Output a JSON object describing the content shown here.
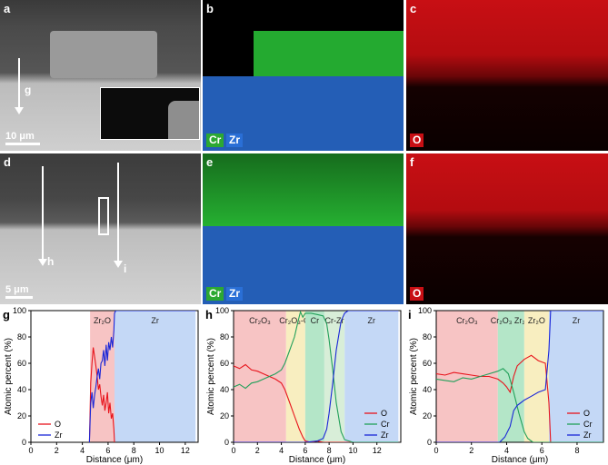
{
  "panels": {
    "a": {
      "label": "a",
      "scale": "10 μm",
      "arrow": "g"
    },
    "b": {
      "label": "b",
      "tags": [
        "Cr",
        "Zr"
      ]
    },
    "c": {
      "label": "c",
      "tags": [
        "O"
      ]
    },
    "d": {
      "label": "d",
      "scale": "5 μm",
      "arrows": [
        "h",
        "i"
      ]
    },
    "e": {
      "label": "e",
      "tags": [
        "Cr",
        "Zr"
      ]
    },
    "f": {
      "label": "f",
      "tags": [
        "O"
      ]
    }
  },
  "colors": {
    "O": "#e8141c",
    "Cr": "#21a05a",
    "Zr": "#1a26d8",
    "map_cr": "#2ccf3a",
    "map_zr": "#2a6fd6",
    "map_o": "#c80f14",
    "zone_red": "#f7c4c4",
    "zone_yellow": "#f8eec0",
    "zone_green": "#b4e6c8",
    "zone_blue": "#c4d8f6"
  },
  "chart_data": [
    {
      "type": "line",
      "label": "g",
      "xlabel": "Distance (μm)",
      "ylabel": "Atomic percent (%)",
      "xlim": [
        0,
        13
      ],
      "ylim": [
        0,
        100
      ],
      "xticks": [
        0,
        2,
        4,
        6,
        8,
        10,
        12
      ],
      "yticks": [
        0,
        20,
        40,
        60,
        80,
        100
      ],
      "zones": [
        {
          "name": "Zr₂O",
          "from": 4.6,
          "to": 6.5,
          "color": "#f7c4c4"
        },
        {
          "name": "Zr",
          "from": 6.5,
          "to": 12.8,
          "color": "#c4d8f6"
        }
      ],
      "series": [
        {
          "name": "O",
          "color": "#e8141c",
          "x": [
            4.55,
            4.65,
            4.75,
            4.85,
            4.95,
            5.05,
            5.15,
            5.25,
            5.35,
            5.45,
            5.55,
            5.65,
            5.75,
            5.85,
            5.95,
            6.05,
            6.15,
            6.25,
            6.35,
            6.45,
            6.5
          ],
          "y": [
            0,
            45,
            60,
            72,
            65,
            58,
            50,
            40,
            44,
            35,
            28,
            36,
            24,
            30,
            38,
            22,
            30,
            18,
            22,
            10,
            0
          ]
        },
        {
          "name": "Zr",
          "color": "#1a26d8",
          "x": [
            4.55,
            4.65,
            4.75,
            4.85,
            4.95,
            5.05,
            5.15,
            5.25,
            5.35,
            5.45,
            5.55,
            5.65,
            5.75,
            5.85,
            5.95,
            6.05,
            6.15,
            6.25,
            6.35,
            6.45,
            6.5,
            6.6,
            12.8
          ],
          "y": [
            0,
            30,
            38,
            26,
            36,
            42,
            50,
            56,
            48,
            60,
            62,
            70,
            58,
            74,
            62,
            76,
            70,
            80,
            72,
            85,
            98,
            100,
            100
          ]
        }
      ],
      "legend": [
        "O",
        "Zr"
      ],
      "legend_position": "bottom-left"
    },
    {
      "type": "line",
      "label": "h",
      "xlabel": "Distance (μm)",
      "ylabel": "Atomic percent (%)",
      "xlim": [
        0,
        14
      ],
      "ylim": [
        0,
        100
      ],
      "xticks": [
        0,
        2,
        4,
        6,
        8,
        10,
        12
      ],
      "yticks": [
        0,
        20,
        40,
        60,
        80,
        100
      ],
      "zones": [
        {
          "name": "Cr₂O₃",
          "from": 0,
          "to": 4.4,
          "color": "#f7c4c4"
        },
        {
          "name": "Cr₂O₃-Cr",
          "from": 4.4,
          "to": 6.0,
          "color": "#f8eec0"
        },
        {
          "name": "Cr",
          "from": 6.0,
          "to": 7.6,
          "color": "#b4e6c8"
        },
        {
          "name": "Cr-Zr",
          "from": 7.6,
          "to": 9.3,
          "color": "#d8eed8"
        },
        {
          "name": "Zr",
          "from": 9.3,
          "to": 13.8,
          "color": "#c4d8f6"
        }
      ],
      "series": [
        {
          "name": "O",
          "color": "#e8141c",
          "x": [
            0,
            0.5,
            1,
            1.5,
            2,
            2.5,
            3,
            3.5,
            4,
            4.3,
            4.7,
            5.1,
            5.5,
            5.8,
            6.0,
            6.5,
            7.0,
            7.5,
            8.0,
            9.0,
            10,
            12,
            13.8
          ],
          "y": [
            58,
            56,
            59,
            55,
            54,
            52,
            50,
            48,
            45,
            40,
            30,
            20,
            10,
            4,
            1,
            0,
            1,
            0,
            0,
            0,
            0,
            0,
            0
          ]
        },
        {
          "name": "Cr",
          "color": "#21a05a",
          "x": [
            0,
            0.5,
            1,
            1.5,
            2,
            2.5,
            3,
            3.5,
            4,
            4.3,
            4.7,
            5.1,
            5.4,
            5.6,
            5.8,
            6.0,
            6.5,
            7.0,
            7.5,
            7.8,
            8.0,
            8.3,
            8.6,
            9.0,
            9.3,
            10,
            12,
            13.8
          ],
          "y": [
            42,
            44,
            41,
            45,
            46,
            48,
            50,
            52,
            55,
            60,
            70,
            80,
            92,
            99,
            95,
            98,
            98,
            97,
            96,
            90,
            78,
            55,
            30,
            8,
            2,
            0,
            0,
            0
          ]
        },
        {
          "name": "Zr",
          "color": "#1a26d8",
          "x": [
            0,
            4,
            6.0,
            7.0,
            7.5,
            7.8,
            8.0,
            8.3,
            8.6,
            9.0,
            9.3,
            9.6,
            10,
            12,
            13.8
          ],
          "y": [
            0,
            0,
            0,
            1,
            3,
            10,
            22,
            45,
            70,
            92,
            98,
            100,
            100,
            100,
            100
          ]
        }
      ],
      "legend": [
        "O",
        "Cr",
        "Zr"
      ],
      "legend_position": "bottom-right"
    },
    {
      "type": "line",
      "label": "i",
      "xlabel": "Distance (μm)",
      "ylabel": "Atomic percent (%)",
      "xlim": [
        0,
        9.5
      ],
      "ylim": [
        0,
        100
      ],
      "xticks": [
        0,
        2,
        4,
        6,
        8
      ],
      "yticks": [
        0,
        20,
        40,
        60,
        80,
        100
      ],
      "zones": [
        {
          "name": "Cr₂O₃",
          "from": 0,
          "to": 3.5,
          "color": "#f7c4c4"
        },
        {
          "name": "Cr₂O₃ Zr₂O",
          "from": 3.5,
          "to": 5.0,
          "color": "#b4e6c8"
        },
        {
          "name": "Zr₂O",
          "from": 5.0,
          "to": 6.4,
          "color": "#f8eec0"
        },
        {
          "name": "Zr",
          "from": 6.4,
          "to": 9.5,
          "color": "#c4d8f6"
        }
      ],
      "series": [
        {
          "name": "O",
          "color": "#e8141c",
          "x": [
            0,
            0.5,
            1,
            1.5,
            2,
            2.5,
            3,
            3.5,
            3.8,
            4.0,
            4.2,
            4.4,
            4.6,
            5.0,
            5.4,
            5.8,
            6.2,
            6.4,
            6.5,
            7,
            9.5
          ],
          "y": [
            52,
            51,
            53,
            52,
            51,
            50,
            50,
            48,
            45,
            42,
            38,
            50,
            58,
            63,
            66,
            62,
            60,
            30,
            0,
            0,
            0
          ]
        },
        {
          "name": "Cr",
          "color": "#21a05a",
          "x": [
            0,
            0.5,
            1,
            1.5,
            2,
            2.5,
            3,
            3.5,
            3.8,
            4.1,
            4.4,
            4.7,
            5.0,
            5.2,
            5.5,
            6,
            9.5
          ],
          "y": [
            48,
            47,
            46,
            49,
            48,
            50,
            52,
            54,
            56,
            52,
            38,
            22,
            8,
            3,
            0,
            0,
            0
          ]
        },
        {
          "name": "Zr",
          "color": "#1a26d8",
          "x": [
            0,
            3.6,
            3.9,
            4.2,
            4.4,
            4.6,
            4.8,
            5.0,
            5.4,
            5.8,
            6.2,
            6.4,
            6.5,
            7,
            9.5
          ],
          "y": [
            0,
            0,
            4,
            12,
            24,
            28,
            30,
            32,
            35,
            38,
            40,
            70,
            100,
            100,
            100
          ]
        }
      ],
      "legend": [
        "O",
        "Cr",
        "Zr"
      ],
      "legend_position": "bottom-right"
    }
  ]
}
